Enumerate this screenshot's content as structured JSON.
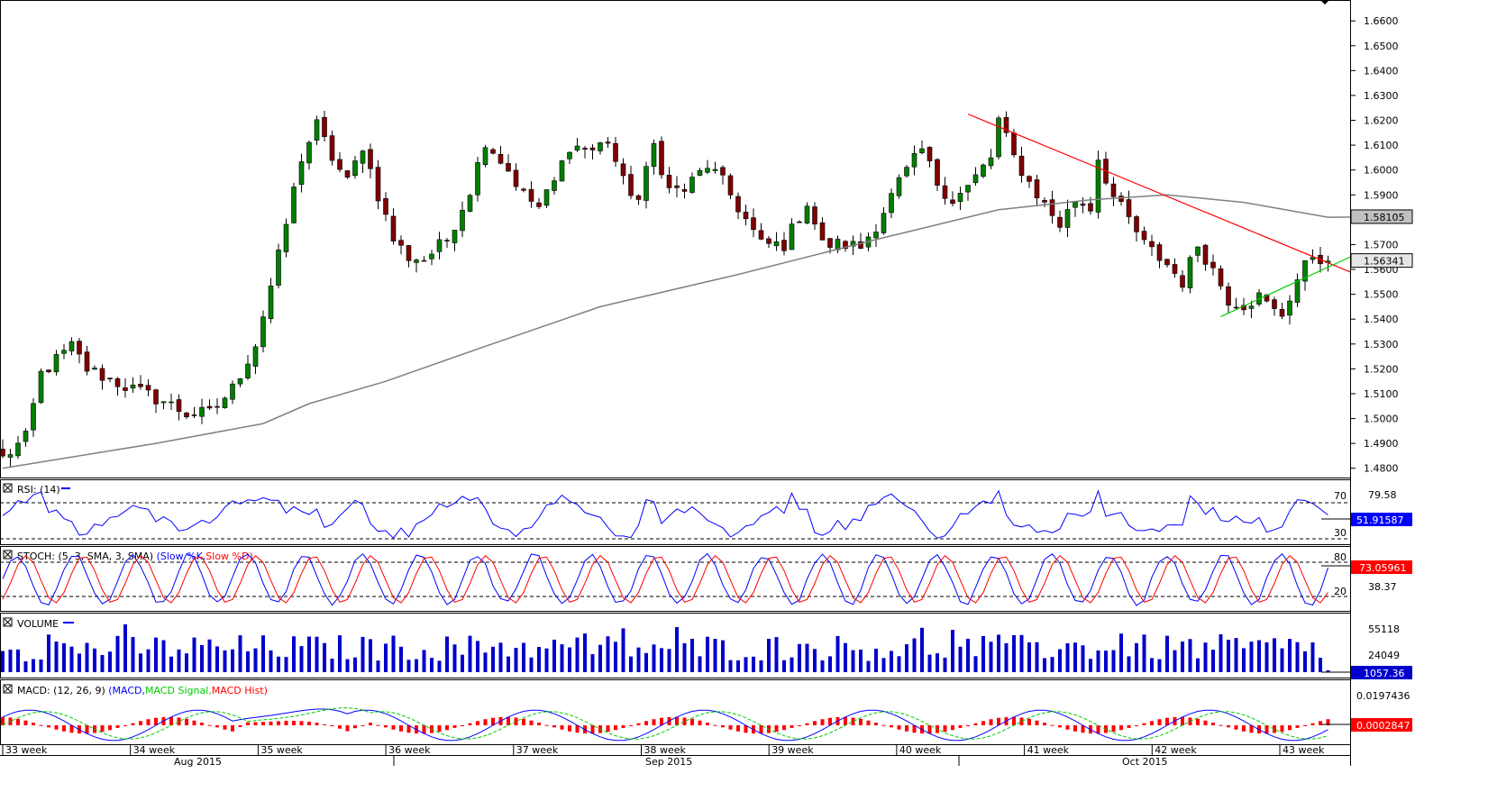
{
  "chart_data": {
    "type": "candlestick",
    "price_panel": {
      "y_ticks": [
        "1.6600",
        "1.6500",
        "1.6400",
        "1.6300",
        "1.6200",
        "1.6100",
        "1.6000",
        "1.5900",
        "1.5800",
        "1.5700",
        "1.5600",
        "1.5500",
        "1.5400",
        "1.5300",
        "1.5200",
        "1.5100",
        "1.5000",
        "1.4900",
        "1.4800"
      ],
      "ylim": [
        1.477,
        1.6655
      ],
      "sma_tag": "1.58105",
      "last_price_tag": "1.56341",
      "sma_value": 1.58105,
      "last_price": 1.56341,
      "colors": {
        "up": "#008000",
        "down": "#800000",
        "sma": "#808080",
        "resistance": "#ff0000",
        "support": "#00cc00"
      },
      "candle_count": 174,
      "anchors": [
        {
          "i": 0,
          "close": 1.484
        },
        {
          "i": 3,
          "close": 1.492
        },
        {
          "i": 5,
          "close": 1.518
        },
        {
          "i": 9,
          "close": 1.529
        },
        {
          "i": 11,
          "close": 1.52
        },
        {
          "i": 16,
          "close": 1.513
        },
        {
          "i": 21,
          "close": 1.507
        },
        {
          "i": 24,
          "close": 1.502
        },
        {
          "i": 27,
          "close": 1.502
        },
        {
          "i": 30,
          "close": 1.512
        },
        {
          "i": 33,
          "close": 1.53
        },
        {
          "i": 36,
          "close": 1.565
        },
        {
          "i": 39,
          "close": 1.605
        },
        {
          "i": 41,
          "close": 1.618
        },
        {
          "i": 43,
          "close": 1.605
        },
        {
          "i": 45,
          "close": 1.595
        },
        {
          "i": 47,
          "close": 1.61
        },
        {
          "i": 49,
          "close": 1.59
        },
        {
          "i": 51,
          "close": 1.572
        },
        {
          "i": 53,
          "close": 1.565
        },
        {
          "i": 55,
          "close": 1.564
        },
        {
          "i": 58,
          "close": 1.572
        },
        {
          "i": 61,
          "close": 1.592
        },
        {
          "i": 63,
          "close": 1.612
        },
        {
          "i": 66,
          "close": 1.6
        },
        {
          "i": 68,
          "close": 1.59
        },
        {
          "i": 70,
          "close": 1.585
        },
        {
          "i": 72,
          "close": 1.595
        },
        {
          "i": 74,
          "close": 1.61
        },
        {
          "i": 77,
          "close": 1.608
        },
        {
          "i": 79,
          "close": 1.612
        },
        {
          "i": 81,
          "close": 1.595
        },
        {
          "i": 83,
          "close": 1.588
        },
        {
          "i": 85,
          "close": 1.61
        },
        {
          "i": 87,
          "close": 1.592
        },
        {
          "i": 89,
          "close": 1.592
        },
        {
          "i": 92,
          "close": 1.602
        },
        {
          "i": 94,
          "close": 1.595
        },
        {
          "i": 96,
          "close": 1.585
        },
        {
          "i": 99,
          "close": 1.57
        },
        {
          "i": 102,
          "close": 1.57
        },
        {
          "i": 105,
          "close": 1.587
        },
        {
          "i": 107,
          "close": 1.57
        },
        {
          "i": 110,
          "close": 1.57
        },
        {
          "i": 112,
          "close": 1.569
        },
        {
          "i": 114,
          "close": 1.578
        },
        {
          "i": 117,
          "close": 1.595
        },
        {
          "i": 120,
          "close": 1.608
        },
        {
          "i": 122,
          "close": 1.595
        },
        {
          "i": 124,
          "close": 1.588
        },
        {
          "i": 126,
          "close": 1.593
        },
        {
          "i": 129,
          "close": 1.605
        },
        {
          "i": 130,
          "close": 1.62
        },
        {
          "i": 132,
          "close": 1.605
        },
        {
          "i": 134,
          "close": 1.595
        },
        {
          "i": 136,
          "close": 1.586
        },
        {
          "i": 138,
          "close": 1.578
        },
        {
          "i": 140,
          "close": 1.588
        },
        {
          "i": 142,
          "close": 1.585
        },
        {
          "i": 143,
          "close": 1.605
        },
        {
          "i": 145,
          "close": 1.589
        },
        {
          "i": 147,
          "close": 1.58
        },
        {
          "i": 149,
          "close": 1.57
        },
        {
          "i": 152,
          "close": 1.562
        },
        {
          "i": 154,
          "close": 1.555
        },
        {
          "i": 156,
          "close": 1.57
        },
        {
          "i": 158,
          "close": 1.56
        },
        {
          "i": 160,
          "close": 1.548
        },
        {
          "i": 162,
          "close": 1.546
        },
        {
          "i": 164,
          "close": 1.549
        },
        {
          "i": 166,
          "close": 1.543
        },
        {
          "i": 167,
          "close": 1.542
        },
        {
          "i": 169,
          "close": 1.556
        },
        {
          "i": 171,
          "close": 1.566
        },
        {
          "i": 173,
          "close": 1.5634
        }
      ],
      "sma_anchors": [
        {
          "i": 0,
          "v": 1.48
        },
        {
          "i": 20,
          "v": 1.49
        },
        {
          "i": 34,
          "v": 1.498
        },
        {
          "i": 40,
          "v": 1.506
        },
        {
          "i": 50,
          "v": 1.515
        },
        {
          "i": 62,
          "v": 1.528
        },
        {
          "i": 78,
          "v": 1.545
        },
        {
          "i": 96,
          "v": 1.558
        },
        {
          "i": 114,
          "v": 1.572
        },
        {
          "i": 130,
          "v": 1.584
        },
        {
          "i": 142,
          "v": 1.588
        },
        {
          "i": 152,
          "v": 1.59
        },
        {
          "i": 162,
          "v": 1.587
        },
        {
          "i": 173,
          "v": 1.581
        }
      ],
      "resistance_line": {
        "from": {
          "i": 126,
          "v": 1.6225
        },
        "to": {
          "i": 188,
          "v": 1.559
        }
      },
      "support_line": {
        "from": {
          "i": 159,
          "v": 1.541
        },
        "to": {
          "i": 188,
          "v": 1.565
        }
      }
    },
    "rsi": {
      "label": "RSI: (14)",
      "levels": {
        "upper": "70",
        "lower": "30"
      },
      "scale": {
        "high": "79.58"
      },
      "last_value_tag": "51.91587",
      "color": "#0000ff"
    },
    "stoch": {
      "label_prefix": "STOCH: (5, 3, SMA, 3, SMA) ",
      "label_k": "(Slow %K,",
      "label_d": "Slow %D)",
      "levels": {
        "upper": "80",
        "lower": "20"
      },
      "scale": {
        "mid": "38.37"
      },
      "last_value_tag": "73.05961",
      "colors": {
        "k": "#0000ff",
        "d": "#ff0000"
      }
    },
    "volume": {
      "label": "VOLUME",
      "scale": {
        "high": "55118",
        "mid": "24049"
      },
      "last_value_tag": "1057.36",
      "color": "#0000cc"
    },
    "macd": {
      "label_prefix": "MACD: (12, 26, 9) ",
      "label_macd": "(MACD,",
      "label_signal": "MACD Signal,",
      "label_hist": "MACD Hist)",
      "scale": {
        "high": "0.0197436"
      },
      "last_value_tag": "0.0002847",
      "colors": {
        "macd": "#0000ff",
        "signal": "#00cc00",
        "hist": "#ff0000"
      }
    },
    "x_axis": {
      "weeks": [
        "33 week",
        "34 week",
        "35 week",
        "36 week",
        "37 week",
        "38 week",
        "39 week",
        "40 week",
        "41 week",
        "42 week",
        "43 week"
      ],
      "months": [
        "Aug 2015",
        "Sep 2015",
        "Oct 2015"
      ]
    }
  }
}
